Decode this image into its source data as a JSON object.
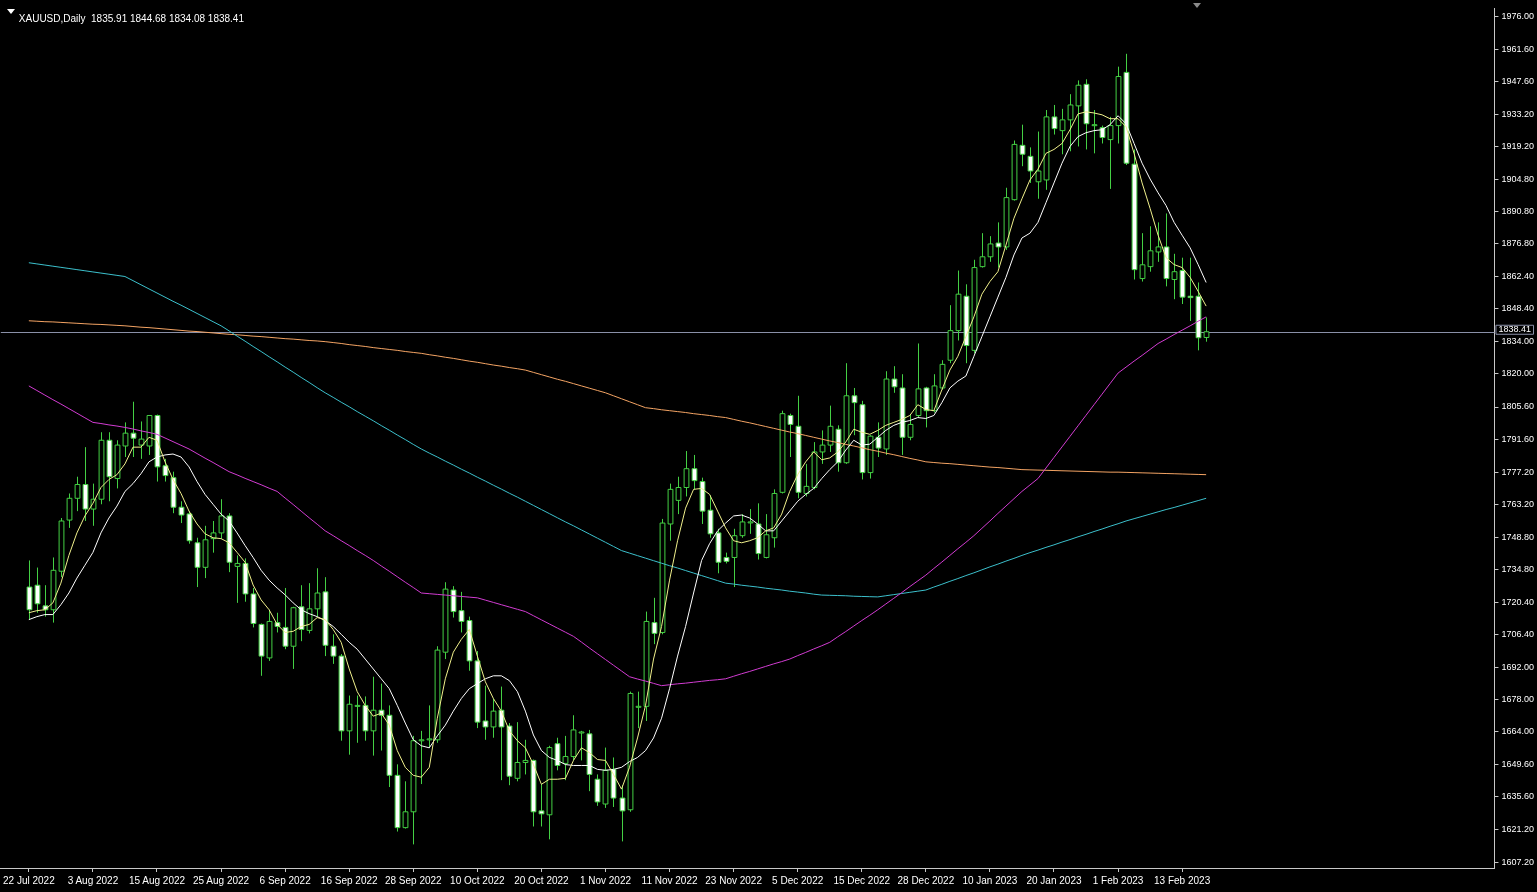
{
  "chart_data": {
    "type": "candlestick",
    "title": "XAUUSD,Daily  1835.91 1844.68 1834.08 1838.41",
    "color": "#44d044",
    "categories": [
      "22 Jul 2022",
      null,
      null,
      null,
      null,
      null,
      null,
      null,
      "3 Aug 2022",
      null,
      null,
      null,
      null,
      null,
      null,
      null,
      "15 Aug 2022",
      null,
      null,
      null,
      null,
      null,
      null,
      null,
      "25 Aug 2022",
      null,
      null,
      null,
      null,
      null,
      null,
      null,
      "6 Sep 2022",
      null,
      null,
      null,
      null,
      null,
      null,
      null,
      "16 Sep 2022",
      null,
      null,
      null,
      null,
      null,
      null,
      null,
      "28 Sep 2022",
      null,
      null,
      null,
      null,
      null,
      null,
      null,
      "10 Oct 2022",
      null,
      null,
      null,
      null,
      null,
      null,
      null,
      "20 Oct 2022",
      null,
      null,
      null,
      null,
      null,
      null,
      null,
      "1 Nov 2022",
      null,
      null,
      null,
      null,
      null,
      null,
      null,
      "11 Nov 2022",
      null,
      null,
      null,
      null,
      null,
      null,
      null,
      "23 Nov 2022",
      null,
      null,
      null,
      null,
      null,
      null,
      null,
      "5 Dec 2022",
      null,
      null,
      null,
      null,
      null,
      null,
      null,
      "15 Dec 2022",
      null,
      null,
      null,
      null,
      null,
      null,
      null,
      "28 Dec 2022",
      null,
      null,
      null,
      null,
      null,
      null,
      null,
      "10 Jan 2023",
      null,
      null,
      null,
      null,
      null,
      null,
      null,
      "20 Jan 2023",
      null,
      null,
      null,
      null,
      null,
      null,
      null,
      "1 Feb 2023",
      null,
      null,
      null,
      null,
      null,
      null,
      null,
      "13 Feb 2023",
      null,
      null,
      null
    ],
    "ohlc": [
      [
        1727.1,
        1738.7,
        1712.9,
        1717.2
      ],
      [
        1727.9,
        1735.6,
        1715.9,
        1719.8
      ],
      [
        1718.9,
        1727.9,
        1714.2,
        1717.2
      ],
      [
        1717.2,
        1740.0,
        1711.6,
        1734.4
      ],
      [
        1734.0,
        1757.2,
        1731.4,
        1755.9
      ],
      [
        1756.3,
        1767.9,
        1752.9,
        1765.8
      ],
      [
        1765.8,
        1775.2,
        1760.2,
        1771.8
      ],
      [
        1771.8,
        1788.1,
        1755.9,
        1761.1
      ],
      [
        1761.1,
        1772.2,
        1753.8,
        1765.4
      ],
      [
        1765.4,
        1794.6,
        1763.2,
        1791.1
      ],
      [
        1791.1,
        1794.6,
        1764.5,
        1775.2
      ],
      [
        1774.4,
        1791.1,
        1770.1,
        1789.0
      ],
      [
        1788.6,
        1798.9,
        1783.8,
        1794.2
      ],
      [
        1794.2,
        1807.9,
        1783.8,
        1792.0
      ],
      [
        1789.0,
        1799.3,
        1783.0,
        1791.6
      ],
      [
        1788.6,
        1802.1,
        1784.7,
        1801.9
      ],
      [
        1801.9,
        1802.3,
        1773.1,
        1779.5
      ],
      [
        1780.0,
        1783.0,
        1773.1,
        1775.7
      ],
      [
        1774.8,
        1777.4,
        1759.3,
        1761.9
      ],
      [
        1761.9,
        1764.5,
        1755.0,
        1758.5
      ],
      [
        1759.0,
        1760.2,
        1746.0,
        1747.3
      ],
      [
        1746.4,
        1748.6,
        1727.1,
        1735.7
      ],
      [
        1735.7,
        1753.8,
        1731.0,
        1747.7
      ],
      [
        1748.2,
        1755.9,
        1742.1,
        1750.7
      ],
      [
        1750.7,
        1765.4,
        1748.2,
        1758.1
      ],
      [
        1758.1,
        1759.3,
        1733.6,
        1737.9
      ],
      [
        1736.1,
        1740.9,
        1720.2,
        1737.4
      ],
      [
        1737.4,
        1739.6,
        1720.7,
        1724.1
      ],
      [
        1724.1,
        1726.7,
        1709.5,
        1711.2
      ],
      [
        1710.8,
        1711.2,
        1688.4,
        1697.0
      ],
      [
        1696.2,
        1717.2,
        1694.9,
        1712.1
      ],
      [
        1711.6,
        1715.9,
        1707.3,
        1709.9
      ],
      [
        1709.5,
        1726.7,
        1700.0,
        1701.3
      ],
      [
        1701.3,
        1718.5,
        1691.4,
        1718.1
      ],
      [
        1718.5,
        1727.9,
        1703.5,
        1708.6
      ],
      [
        1708.2,
        1728.8,
        1706.9,
        1717.6
      ],
      [
        1717.6,
        1735.3,
        1714.2,
        1724.5
      ],
      [
        1725.0,
        1731.4,
        1697.0,
        1701.7
      ],
      [
        1701.3,
        1706.5,
        1693.6,
        1697.0
      ],
      [
        1697.0,
        1697.9,
        1660.1,
        1664.4
      ],
      [
        1664.4,
        1679.8,
        1654.0,
        1676.0
      ],
      [
        1675.1,
        1679.8,
        1659.2,
        1675.5
      ],
      [
        1675.5,
        1679.4,
        1660.1,
        1664.4
      ],
      [
        1664.4,
        1688.0,
        1653.6,
        1673.4
      ],
      [
        1673.4,
        1685.0,
        1655.8,
        1671.2
      ],
      [
        1671.2,
        1675.5,
        1639.9,
        1645.0
      ],
      [
        1645.0,
        1649.8,
        1620.5,
        1622.2
      ],
      [
        1622.2,
        1642.4,
        1621.8,
        1629.1
      ],
      [
        1629.1,
        1662.2,
        1614.9,
        1660.1
      ],
      [
        1660.1,
        1664.4,
        1641.2,
        1660.5
      ],
      [
        1660.5,
        1675.5,
        1657.1,
        1660.9
      ],
      [
        1660.5,
        1701.3,
        1659.2,
        1699.6
      ],
      [
        1698.7,
        1729.2,
        1695.7,
        1726.2
      ],
      [
        1725.8,
        1727.5,
        1713.8,
        1716.4
      ],
      [
        1716.8,
        1725.0,
        1707.3,
        1712.1
      ],
      [
        1712.5,
        1714.2,
        1690.6,
        1694.9
      ],
      [
        1694.9,
        1699.2,
        1665.6,
        1668.2
      ],
      [
        1668.7,
        1684.1,
        1660.5,
        1666.1
      ],
      [
        1666.1,
        1678.5,
        1661.4,
        1673.0
      ],
      [
        1673.4,
        1683.7,
        1642.9,
        1666.1
      ],
      [
        1666.5,
        1667.8,
        1640.7,
        1644.6
      ],
      [
        1643.7,
        1668.2,
        1642.4,
        1650.6
      ],
      [
        1650.6,
        1660.5,
        1645.4,
        1651.5
      ],
      [
        1651.5,
        1651.9,
        1622.7,
        1629.1
      ],
      [
        1629.5,
        1641.2,
        1622.7,
        1628.2
      ],
      [
        1627.8,
        1657.9,
        1617.1,
        1657.1
      ],
      [
        1658.8,
        1661.4,
        1647.2,
        1649.3
      ],
      [
        1650.2,
        1662.2,
        1642.9,
        1653.2
      ],
      [
        1653.2,
        1671.2,
        1651.5,
        1664.8
      ],
      [
        1663.5,
        1664.4,
        1651.5,
        1663.9
      ],
      [
        1663.1,
        1664.8,
        1638.1,
        1645.4
      ],
      [
        1643.3,
        1645.4,
        1631.7,
        1633.4
      ],
      [
        1632.5,
        1657.1,
        1630.8,
        1647.2
      ],
      [
        1647.6,
        1652.8,
        1631.2,
        1635.1
      ],
      [
        1635.1,
        1640.7,
        1616.2,
        1629.5
      ],
      [
        1630.0,
        1681.5,
        1629.1,
        1680.7
      ],
      [
        1674.7,
        1681.5,
        1665.6,
        1675.1
      ],
      [
        1675.1,
        1716.4,
        1668.7,
        1712.1
      ],
      [
        1711.6,
        1722.4,
        1702.2,
        1706.9
      ],
      [
        1707.3,
        1756.8,
        1706.5,
        1755.0
      ],
      [
        1754.6,
        1772.2,
        1747.3,
        1769.7
      ],
      [
        1764.9,
        1775.2,
        1758.9,
        1770.5
      ],
      [
        1770.5,
        1786.4,
        1766.6,
        1778.7
      ],
      [
        1778.7,
        1784.7,
        1769.7,
        1773.5
      ],
      [
        1773.1,
        1774.8,
        1754.6,
        1760.2
      ],
      [
        1760.6,
        1767.1,
        1748.6,
        1750.3
      ],
      [
        1750.7,
        1752.5,
        1733.1,
        1737.9
      ],
      [
        1740.0,
        1742.1,
        1737.4,
        1738.3
      ],
      [
        1740.0,
        1752.5,
        1727.1,
        1749.5
      ],
      [
        1749.5,
        1758.9,
        1748.6,
        1755.5
      ],
      [
        1755.1,
        1761.1,
        1750.3,
        1755.5
      ],
      [
        1754.6,
        1763.6,
        1739.1,
        1741.7
      ],
      [
        1740.0,
        1758.9,
        1739.6,
        1749.9
      ],
      [
        1748.6,
        1769.7,
        1744.3,
        1767.9
      ],
      [
        1768.4,
        1804.0,
        1767.9,
        1802.7
      ],
      [
        1801.9,
        1802.7,
        1783.8,
        1798.0
      ],
      [
        1797.2,
        1810.5,
        1765.8,
        1768.4
      ],
      [
        1767.9,
        1780.8,
        1766.6,
        1771.0
      ],
      [
        1770.5,
        1790.3,
        1769.7,
        1786.0
      ],
      [
        1786.0,
        1795.4,
        1780.8,
        1789.0
      ],
      [
        1789.0,
        1806.2,
        1786.0,
        1797.2
      ],
      [
        1795.9,
        1797.6,
        1777.4,
        1781.3
      ],
      [
        1781.3,
        1824.7,
        1780.8,
        1810.5
      ],
      [
        1810.5,
        1813.9,
        1793.3,
        1807.5
      ],
      [
        1806.6,
        1808.3,
        1774.0,
        1777.0
      ],
      [
        1777.0,
        1793.3,
        1774.4,
        1792.9
      ],
      [
        1792.4,
        1798.9,
        1783.8,
        1787.7
      ],
      [
        1787.3,
        1821.2,
        1784.7,
        1817.8
      ],
      [
        1817.8,
        1823.4,
        1811.8,
        1814.4
      ],
      [
        1813.9,
        1819.9,
        1784.7,
        1792.4
      ],
      [
        1792.4,
        1802.3,
        1791.1,
        1798.0
      ],
      [
        1801.9,
        1833.3,
        1801.0,
        1813.5
      ],
      [
        1813.9,
        1814.4,
        1796.7,
        1804.0
      ],
      [
        1804.0,
        1819.9,
        1803.2,
        1814.8
      ],
      [
        1813.9,
        1826.0,
        1813.1,
        1824.2
      ],
      [
        1826.0,
        1850.0,
        1824.7,
        1838.9
      ],
      [
        1838.9,
        1865.1,
        1834.6,
        1854.8
      ],
      [
        1853.9,
        1859.1,
        1824.7,
        1832.4
      ],
      [
        1830.3,
        1869.8,
        1829.0,
        1866.4
      ],
      [
        1866.8,
        1881.4,
        1866.4,
        1871.1
      ],
      [
        1871.1,
        1880.1,
        1868.9,
        1876.7
      ],
      [
        1877.1,
        1886.1,
        1866.4,
        1875.4
      ],
      [
        1875.4,
        1901.2,
        1874.1,
        1896.9
      ],
      [
        1896.0,
        1921.8,
        1895.6,
        1920.1
      ],
      [
        1919.7,
        1928.7,
        1910.6,
        1915.8
      ],
      [
        1914.9,
        1918.8,
        1903.3,
        1908.5
      ],
      [
        1903.8,
        1925.7,
        1896.4,
        1908.5
      ],
      [
        1904.6,
        1935.1,
        1900.3,
        1932.1
      ],
      [
        1932.1,
        1937.3,
        1924.4,
        1927.0
      ],
      [
        1926.1,
        1935.6,
        1915.8,
        1930.8
      ],
      [
        1930.8,
        1942.0,
        1917.1,
        1937.3
      ],
      [
        1936.9,
        1948.0,
        1919.2,
        1945.9
      ],
      [
        1946.3,
        1948.5,
        1917.9,
        1929.1
      ],
      [
        1928.3,
        1935.1,
        1916.2,
        1928.7
      ],
      [
        1927.4,
        1928.3,
        1920.5,
        1923.1
      ],
      [
        1922.2,
        1932.1,
        1900.7,
        1928.3
      ],
      [
        1928.3,
        1954.0,
        1920.5,
        1949.7
      ],
      [
        1951.5,
        1959.6,
        1911.1,
        1911.9
      ],
      [
        1911.5,
        1917.9,
        1861.2,
        1865.5
      ],
      [
        1861.6,
        1881.4,
        1860.3,
        1867.6
      ],
      [
        1866.8,
        1884.4,
        1864.6,
        1873.7
      ],
      [
        1873.2,
        1886.1,
        1868.9,
        1875.4
      ],
      [
        1875.4,
        1890.0,
        1858.2,
        1861.6
      ],
      [
        1861.2,
        1872.4,
        1852.6,
        1864.6
      ],
      [
        1865.1,
        1870.7,
        1850.5,
        1853.5
      ],
      [
        1853.9,
        1870.7,
        1843.1,
        1853.3
      ],
      [
        1853.9,
        1859.9,
        1830.3,
        1835.8
      ],
      [
        1835.91,
        1844.68,
        1834.08,
        1838.41
      ]
    ],
    "series": [
      {
        "type": "line",
        "color": "#f0f08c",
        "values": [
          1715.9,
          1716.8,
          1717.2,
          1720.2,
          1728.8,
          1740.9,
          1750.7,
          1758.1,
          1763.6,
          1770.5,
          1774.0,
          1776.1,
          1780.8,
          1788.1,
          1788.1,
          1792.4,
          1791.1,
          1781.7,
          1774.0,
          1767.9,
          1760.2,
          1754.6,
          1750.3,
          1748.6,
          1748.2,
          1746.4,
          1742.2,
          1737.9,
          1728.0,
          1721.5,
          1717.2,
          1710.8,
          1707.3,
          1707.8,
          1709.9,
          1710.8,
          1713.8,
          1712.9,
          1708.6,
          1703.0,
          1691.4,
          1681.5,
          1675.5,
          1670.8,
          1672.1,
          1666.9,
          1655.8,
          1648.5,
          1645.0,
          1644.2,
          1648.5,
          1669.9,
          1687.1,
          1698.7,
          1704.3,
          1708.6,
          1697.0,
          1685.8,
          1678.5,
          1673.0,
          1664.4,
          1660.1,
          1657.0,
          1649.7,
          1641.1,
          1643.3,
          1643.3,
          1643.7,
          1651.5,
          1657.0,
          1654.9,
          1651.9,
          1651.5,
          1645.4,
          1639.0,
          1648.5,
          1661.3,
          1675.5,
          1695.7,
          1709.9,
          1730.1,
          1747.3,
          1761.5,
          1769.7,
          1770.1,
          1767.5,
          1760.2,
          1752.9,
          1747.3,
          1746.4,
          1747.3,
          1748.6,
          1751.6,
          1752.9,
          1758.9,
          1768.8,
          1776.1,
          1781.7,
          1786.0,
          1782.6,
          1783.4,
          1786.0,
          1790.3,
          1795.9,
          1794.6,
          1793.7,
          1795.4,
          1797.6,
          1798.9,
          1800.2,
          1801.9,
          1806.6,
          1804.5,
          1804.0,
          1813.1,
          1821.7,
          1827.7,
          1836.3,
          1844.9,
          1854.8,
          1860.3,
          1864.6,
          1876.2,
          1887.9,
          1896.4,
          1904.6,
          1909.3,
          1916.2,
          1917.9,
          1920.5,
          1926.5,
          1933.4,
          1934.3,
          1933.8,
          1933.0,
          1931.3,
          1931.3,
          1927.8,
          1916.2,
          1903.3,
          1892.2,
          1880.5,
          1870.7,
          1867.7,
          1866.4,
          1862.1,
          1856.0,
          1849.6
        ]
      },
      {
        "type": "line",
        "color": "#ffffff",
        "values": [
          1712.9,
          1714.2,
          1715.1,
          1715.1,
          1719.4,
          1724.5,
          1731.0,
          1736.6,
          1742.2,
          1750.7,
          1757.2,
          1762.4,
          1768.8,
          1772.2,
          1776.5,
          1781.7,
          1783.8,
          1784.7,
          1785.1,
          1783.8,
          1779.5,
          1773.1,
          1767.5,
          1763.2,
          1758.9,
          1755.9,
          1750.7,
          1745.2,
          1740.0,
          1734.4,
          1730.1,
          1726.7,
          1723.7,
          1720.2,
          1717.2,
          1715.5,
          1714.2,
          1712.5,
          1709.9,
          1706.5,
          1703.0,
          1700.0,
          1695.7,
          1691.4,
          1687.1,
          1682.8,
          1675.5,
          1667.8,
          1660.5,
          1657.9,
          1657.0,
          1662.2,
          1666.9,
          1673.0,
          1678.5,
          1682.8,
          1685.0,
          1687.1,
          1688.4,
          1688.4,
          1686.3,
          1681.5,
          1673.0,
          1662.6,
          1655.8,
          1652.8,
          1651.5,
          1649.7,
          1649.3,
          1649.3,
          1649.3,
          1647.6,
          1647.2,
          1647.6,
          1648.5,
          1651.0,
          1652.8,
          1655.8,
          1661.3,
          1669.9,
          1682.8,
          1697.0,
          1709.9,
          1724.5,
          1738.7,
          1746.0,
          1751.6,
          1755.0,
          1758.1,
          1758.5,
          1757.2,
          1754.6,
          1751.6,
          1751.6,
          1755.9,
          1760.2,
          1764.5,
          1767.5,
          1770.1,
          1774.4,
          1778.3,
          1781.7,
          1786.8,
          1791.1,
          1789.0,
          1789.4,
          1792.4,
          1795.4,
          1797.6,
          1798.9,
          1799.7,
          1801.0,
          1800.6,
          1801.9,
          1807.5,
          1813.9,
          1816.9,
          1819.1,
          1827.7,
          1836.3,
          1844.9,
          1853.5,
          1862.1,
          1871.9,
          1879.3,
          1881.4,
          1886.1,
          1894.7,
          1903.3,
          1911.9,
          1919.2,
          1923.5,
          1925.2,
          1926.1,
          1926.5,
          1928.7,
          1932.6,
          1929.1,
          1920.5,
          1911.9,
          1905.0,
          1899.0,
          1893.4,
          1886.1,
          1880.5,
          1875.0,
          1867.7,
          1859.9
        ]
      },
      {
        "type": "line",
        "color": "#d23cd2",
        "values": [
          1814.8,
          1812.8,
          1810.8,
          1808.8,
          1806.9,
          1804.9,
          1802.9,
          1800.9,
          1798.9,
          1798.4,
          1797.8,
          1797.3,
          1796.7,
          1796.0,
          1795.2,
          1794.5,
          1793.7,
          1792.1,
          1790.5,
          1788.9,
          1787.3,
          1785.3,
          1783.3,
          1781.4,
          1779.4,
          1777.4,
          1776.0,
          1774.5,
          1773.1,
          1771.7,
          1770.2,
          1768.8,
          1765.9,
          1763.1,
          1760.2,
          1757.3,
          1754.5,
          1751.6,
          1749.5,
          1747.3,
          1745.2,
          1743.0,
          1740.9,
          1738.7,
          1736.3,
          1734.0,
          1731.6,
          1729.2,
          1726.9,
          1724.5,
          1724.2,
          1723.9,
          1723.6,
          1723.3,
          1723.0,
          1722.7,
          1722.4,
          1721.4,
          1720.4,
          1719.4,
          1718.4,
          1717.4,
          1716.4,
          1714.6,
          1712.8,
          1711.0,
          1709.2,
          1707.4,
          1705.6,
          1703.1,
          1700.5,
          1698.0,
          1695.5,
          1693.0,
          1690.5,
          1688.0,
          1687.0,
          1686.1,
          1685.1,
          1684.1,
          1684.5,
          1684.9,
          1685.2,
          1685.6,
          1686.0,
          1686.4,
          1686.7,
          1687.1,
          1688.2,
          1689.3,
          1690.3,
          1691.4,
          1692.5,
          1693.6,
          1694.6,
          1695.7,
          1697.2,
          1698.6,
          1700.1,
          1701.5,
          1703.0,
          1705.4,
          1707.7,
          1710.1,
          1712.5,
          1714.8,
          1717.2,
          1719.7,
          1722.2,
          1724.7,
          1727.3,
          1729.8,
          1732.3,
          1735.2,
          1738.0,
          1740.9,
          1743.8,
          1746.6,
          1749.5,
          1752.7,
          1755.9,
          1759.2,
          1762.4,
          1765.6,
          1768.8,
          1771.6,
          1774.4,
          1779.0,
          1783.6,
          1788.2,
          1792.8,
          1797.4,
          1802.0,
          1806.6,
          1811.2,
          1815.8,
          1820.4,
          1823.0,
          1825.6,
          1828.1,
          1830.7,
          1833.3,
          1835.2,
          1837.2,
          1839.1,
          1841.0,
          1843.0,
          1844.9
        ]
      },
      {
        "type": "line",
        "color": "#3cc0cc",
        "values": [
          1868.5,
          1868.0,
          1867.5,
          1867.0,
          1866.5,
          1866.0,
          1865.5,
          1865.0,
          1864.5,
          1864.0,
          1863.5,
          1863.0,
          1862.5,
          1860.7,
          1858.9,
          1857.1,
          1855.3,
          1853.5,
          1851.7,
          1850.0,
          1848.2,
          1846.4,
          1844.6,
          1842.8,
          1841.0,
          1838.8,
          1836.5,
          1834.3,
          1832.0,
          1829.8,
          1827.5,
          1825.3,
          1823.0,
          1820.8,
          1818.5,
          1816.3,
          1814.0,
          1811.8,
          1809.8,
          1807.7,
          1805.7,
          1803.6,
          1801.6,
          1799.6,
          1797.5,
          1795.5,
          1793.4,
          1791.4,
          1789.3,
          1787.3,
          1785.5,
          1783.8,
          1782.0,
          1780.3,
          1778.5,
          1776.8,
          1775.0,
          1773.3,
          1771.5,
          1769.8,
          1768.0,
          1766.3,
          1764.5,
          1762.7,
          1760.9,
          1759.1,
          1757.3,
          1755.5,
          1753.8,
          1752.0,
          1750.2,
          1748.4,
          1746.6,
          1744.8,
          1743.0,
          1741.9,
          1740.8,
          1739.7,
          1738.6,
          1737.5,
          1736.4,
          1735.4,
          1734.3,
          1733.2,
          1732.1,
          1731.0,
          1729.9,
          1728.8,
          1728.4,
          1727.9,
          1727.5,
          1727.1,
          1726.6,
          1726.2,
          1725.8,
          1725.3,
          1724.9,
          1724.5,
          1724.0,
          1723.6,
          1723.5,
          1723.4,
          1723.3,
          1723.1,
          1723.0,
          1722.9,
          1722.8,
          1723.3,
          1723.8,
          1724.3,
          1724.8,
          1725.3,
          1725.8,
          1727.1,
          1728.3,
          1729.6,
          1730.8,
          1732.1,
          1733.3,
          1734.6,
          1735.9,
          1737.1,
          1738.4,
          1739.6,
          1740.9,
          1742.1,
          1743.2,
          1744.4,
          1745.5,
          1746.7,
          1747.8,
          1749.0,
          1750.1,
          1751.3,
          1752.4,
          1753.6,
          1754.7,
          1755.9,
          1756.9,
          1757.9,
          1758.9,
          1759.9,
          1760.9,
          1761.8,
          1762.8,
          1763.8,
          1764.8,
          1765.8
        ]
      },
      {
        "type": "line",
        "color": "#f4a464",
        "values": [
          1843.2,
          1843.0,
          1842.8,
          1842.7,
          1842.5,
          1842.3,
          1842.1,
          1841.9,
          1841.7,
          1841.6,
          1841.4,
          1841.2,
          1841.0,
          1840.7,
          1840.4,
          1840.2,
          1839.9,
          1839.6,
          1839.3,
          1839.0,
          1838.7,
          1838.5,
          1838.2,
          1837.9,
          1837.6,
          1837.3,
          1837.1,
          1836.8,
          1836.5,
          1836.3,
          1836.0,
          1835.7,
          1835.4,
          1835.2,
          1834.9,
          1834.6,
          1834.4,
          1834.1,
          1833.7,
          1833.3,
          1832.8,
          1832.4,
          1832.0,
          1831.5,
          1831.1,
          1830.7,
          1830.3,
          1829.8,
          1829.4,
          1829.0,
          1828.4,
          1827.9,
          1827.3,
          1826.8,
          1826.2,
          1825.6,
          1825.1,
          1824.5,
          1823.9,
          1823.4,
          1822.8,
          1822.3,
          1821.7,
          1820.7,
          1819.7,
          1818.7,
          1817.7,
          1816.8,
          1815.8,
          1814.8,
          1813.8,
          1812.8,
          1811.8,
          1810.5,
          1809.2,
          1807.9,
          1806.6,
          1805.3,
          1804.9,
          1804.4,
          1804.0,
          1803.6,
          1803.2,
          1802.7,
          1802.3,
          1801.9,
          1801.4,
          1801.0,
          1800.2,
          1799.4,
          1798.7,
          1797.9,
          1797.1,
          1796.3,
          1795.5,
          1794.7,
          1794.0,
          1793.2,
          1792.4,
          1791.6,
          1790.8,
          1790.1,
          1789.3,
          1788.6,
          1787.8,
          1787.0,
          1786.3,
          1785.5,
          1784.8,
          1784.0,
          1783.2,
          1782.5,
          1781.7,
          1781.4,
          1781.1,
          1780.9,
          1780.6,
          1780.3,
          1780.0,
          1779.7,
          1779.4,
          1779.2,
          1778.9,
          1778.6,
          1778.3,
          1778.2,
          1778.1,
          1778.0,
          1777.9,
          1777.8,
          1777.7,
          1777.6,
          1777.5,
          1777.4,
          1777.3,
          1777.2,
          1777.2,
          1777.1,
          1777.0,
          1776.9,
          1776.8,
          1776.7,
          1776.6,
          1776.5,
          1776.4,
          1776.3,
          1776.2,
          1776.1
        ]
      }
    ],
    "ylim": [
      1604.6,
      1979.4
    ],
    "yticks": [
      {
        "value": 1976,
        "label": "1976.00"
      },
      {
        "value": 1961.6,
        "label": "1961.60"
      },
      {
        "value": 1947.6,
        "label": "1947.60"
      },
      {
        "value": 1933.2,
        "label": "1933.20"
      },
      {
        "value": 1919.2,
        "label": "1919.20"
      },
      {
        "value": 1904.8,
        "label": "1904.80"
      },
      {
        "value": 1890.8,
        "label": "1890.80"
      },
      {
        "value": 1876.8,
        "label": "1876.80"
      },
      {
        "value": 1862.4,
        "label": "1862.40"
      },
      {
        "value": 1848.4,
        "label": "1848.40"
      },
      {
        "value": 1834,
        "label": "1834.00"
      },
      {
        "value": 1820,
        "label": "1820.00"
      },
      {
        "value": 1805.6,
        "label": "1805.60"
      },
      {
        "value": 1791.6,
        "label": "1791.60"
      },
      {
        "value": 1777.2,
        "label": "1777.20"
      },
      {
        "value": 1763.2,
        "label": "1763.20"
      },
      {
        "value": 1748.8,
        "label": "1748.80"
      },
      {
        "value": 1734.8,
        "label": "1734.80"
      },
      {
        "value": 1720.4,
        "label": "1720.40"
      },
      {
        "value": 1706.4,
        "label": "1706.40"
      },
      {
        "value": 1692,
        "label": "1692.00"
      },
      {
        "value": 1678,
        "label": "1678.00"
      },
      {
        "value": 1664,
        "label": "1664.00"
      },
      {
        "value": 1649.6,
        "label": "1649.60"
      },
      {
        "value": 1635.6,
        "label": "1635.60"
      },
      {
        "value": 1621.2,
        "label": "1621.20"
      },
      {
        "value": 1607.2,
        "label": "1607.20"
      }
    ],
    "ref_lines": [
      {
        "axis": "y",
        "value": 1838.41,
        "label": "1838.41",
        "color": "#8a90a8"
      }
    ]
  }
}
